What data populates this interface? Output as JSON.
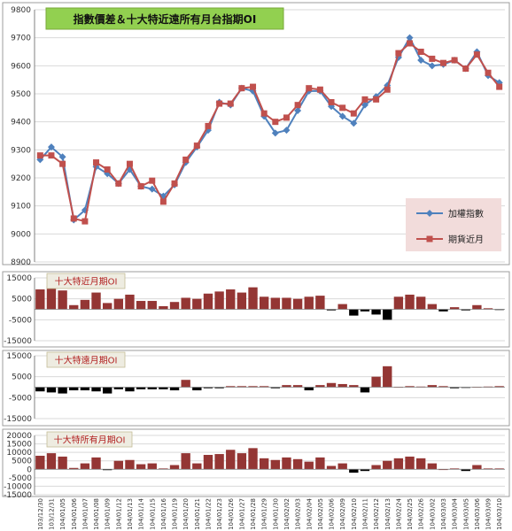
{
  "x_labels": [
    "103/12/30",
    "103/12/31",
    "104/01/05",
    "104/01/06",
    "104/01/07",
    "104/01/08",
    "104/01/09",
    "104/01/12",
    "104/01/13",
    "104/01/14",
    "104/01/15",
    "104/01/16",
    "104/01/19",
    "104/01/20",
    "104/01/21",
    "104/01/22",
    "104/01/23",
    "104/01/26",
    "104/01/27",
    "104/01/28",
    "104/01/29",
    "104/01/30",
    "104/02/02",
    "104/02/03",
    "104/02/04",
    "104/02/05",
    "104/02/06",
    "104/02/09",
    "104/02/10",
    "104/02/11",
    "104/02/12",
    "104/02/13",
    "104/02/24",
    "104/02/25",
    "104/02/26",
    "104/03/02",
    "104/03/03",
    "104/03/04",
    "104/03/05",
    "104/03/06",
    "104/03/09",
    "104/03/10"
  ],
  "x_tick_labels": [
    "103/12/30",
    "103/12/31",
    "104/01/05",
    "104/01/06",
    "104/01/07",
    "104/01/08",
    "104/01/09",
    "104/01/12",
    "104/01/13",
    "104/01/14",
    "104/01/15",
    "104/01/16",
    "104/01/19",
    "104/01/20",
    "104/01/21",
    "104/01/22",
    "104/01/23",
    "104/01/26",
    "104/01/27",
    "104/01/28",
    "104/01/29",
    "104/01/30",
    "104/02/02",
    "104/02/03",
    "104/02/04",
    "104/02/05",
    "104/02/06",
    "104/02/09",
    "104/02/10",
    "104/02/11",
    "104/02/12",
    "104/02/13",
    "104/02/24",
    "104/02/25",
    "104/02/26",
    "104/03/02",
    "104/03/03",
    "104/03/04",
    "104/03/05",
    "104/03/06",
    "104/03/09",
    "104/03/10"
  ],
  "colors": {
    "index_line": "#4f81bd",
    "futures_line": "#c0504d",
    "bar": "#943634",
    "bar_negative": "#000000",
    "title_bg": "#92d050",
    "legend_bg": "#f2dcdb",
    "sub_title_bg": "#eeece1"
  },
  "chart_data": [
    {
      "type": "line",
      "title": "指數價差＆十大特近遠所有月台指期OI",
      "ylim": [
        8900,
        9800
      ],
      "yticks": [
        8900,
        9000,
        9100,
        9200,
        9300,
        9400,
        9500,
        9600,
        9700,
        9800
      ],
      "grid": true,
      "legend_position": "right",
      "series": [
        {
          "name": "加權指數",
          "marker": "diamond",
          "values": [
            9265,
            9310,
            9275,
            9050,
            9085,
            9240,
            9215,
            9180,
            9230,
            9170,
            9160,
            9135,
            9175,
            9255,
            9310,
            9370,
            9470,
            9460,
            9520,
            9510,
            9420,
            9360,
            9370,
            9440,
            9510,
            9510,
            9455,
            9420,
            9395,
            9460,
            9490,
            9530,
            9630,
            9700,
            9620,
            9600,
            9605,
            9620,
            9590,
            9650,
            9565,
            9540
          ]
        },
        {
          "name": "期貨近月",
          "marker": "square",
          "values": [
            9280,
            9280,
            9250,
            9055,
            9045,
            9255,
            9230,
            9180,
            9250,
            9170,
            9190,
            9115,
            9180,
            9265,
            9315,
            9385,
            9465,
            9465,
            9520,
            9525,
            9430,
            9400,
            9415,
            9460,
            9520,
            9515,
            9470,
            9450,
            9430,
            9480,
            9480,
            9515,
            9645,
            9680,
            9650,
            9625,
            9610,
            9620,
            9590,
            9640,
            9575,
            9525
          ]
        }
      ]
    },
    {
      "type": "bar",
      "title": "十大特近月期OI",
      "ylim": [
        -15000,
        15000
      ],
      "yticks": [
        -15000,
        -5000,
        5000,
        15000
      ],
      "series": [
        {
          "name": "十大特近月期OI",
          "values": [
            9500,
            11000,
            9000,
            2000,
            4500,
            8000,
            3000,
            5000,
            7000,
            4000,
            4000,
            1500,
            3500,
            5500,
            5000,
            7500,
            8500,
            9500,
            8000,
            10500,
            6000,
            5500,
            5500,
            5000,
            6000,
            6500,
            -500,
            2500,
            -3000,
            -1000,
            -2500,
            -5000,
            6000,
            7000,
            6000,
            2500,
            -1000,
            1000,
            -500,
            2000,
            500,
            -200
          ]
        }
      ]
    },
    {
      "type": "bar",
      "title": "十大特遠月期OI",
      "ylim": [
        -15000,
        15000
      ],
      "yticks": [
        -15000,
        -5000,
        5000,
        15000
      ],
      "series": [
        {
          "name": "十大特遠月期OI",
          "values": [
            -2000,
            -2500,
            -3000,
            -1500,
            -1500,
            -2000,
            -3000,
            -1000,
            -2000,
            -1000,
            -1000,
            -1000,
            -1500,
            3500,
            -1500,
            -500,
            -500,
            500,
            500,
            500,
            500,
            -500,
            1000,
            1000,
            -1500,
            1000,
            2000,
            1500,
            1000,
            -2500,
            5000,
            10000,
            200,
            500,
            300,
            1000,
            500,
            -500,
            -200,
            200,
            300,
            500
          ]
        }
      ]
    },
    {
      "type": "bar",
      "title": "十大特所有月期OI",
      "ylim": [
        -15000,
        20000
      ],
      "yticks": [
        -15000,
        -10000,
        -5000,
        0,
        5000,
        10000,
        15000,
        20000
      ],
      "series": [
        {
          "name": "十大特所有月期OI",
          "values": [
            8000,
            9500,
            7500,
            800,
            3500,
            7000,
            -500,
            5000,
            5500,
            3000,
            3500,
            500,
            2500,
            9500,
            3500,
            8500,
            9000,
            11500,
            9500,
            12500,
            6500,
            5500,
            7000,
            6000,
            4500,
            7000,
            2000,
            3500,
            -2000,
            -1000,
            2500,
            5000,
            6500,
            7500,
            6500,
            3500,
            0,
            500,
            -1000,
            2500,
            500,
            500
          ]
        }
      ]
    }
  ]
}
